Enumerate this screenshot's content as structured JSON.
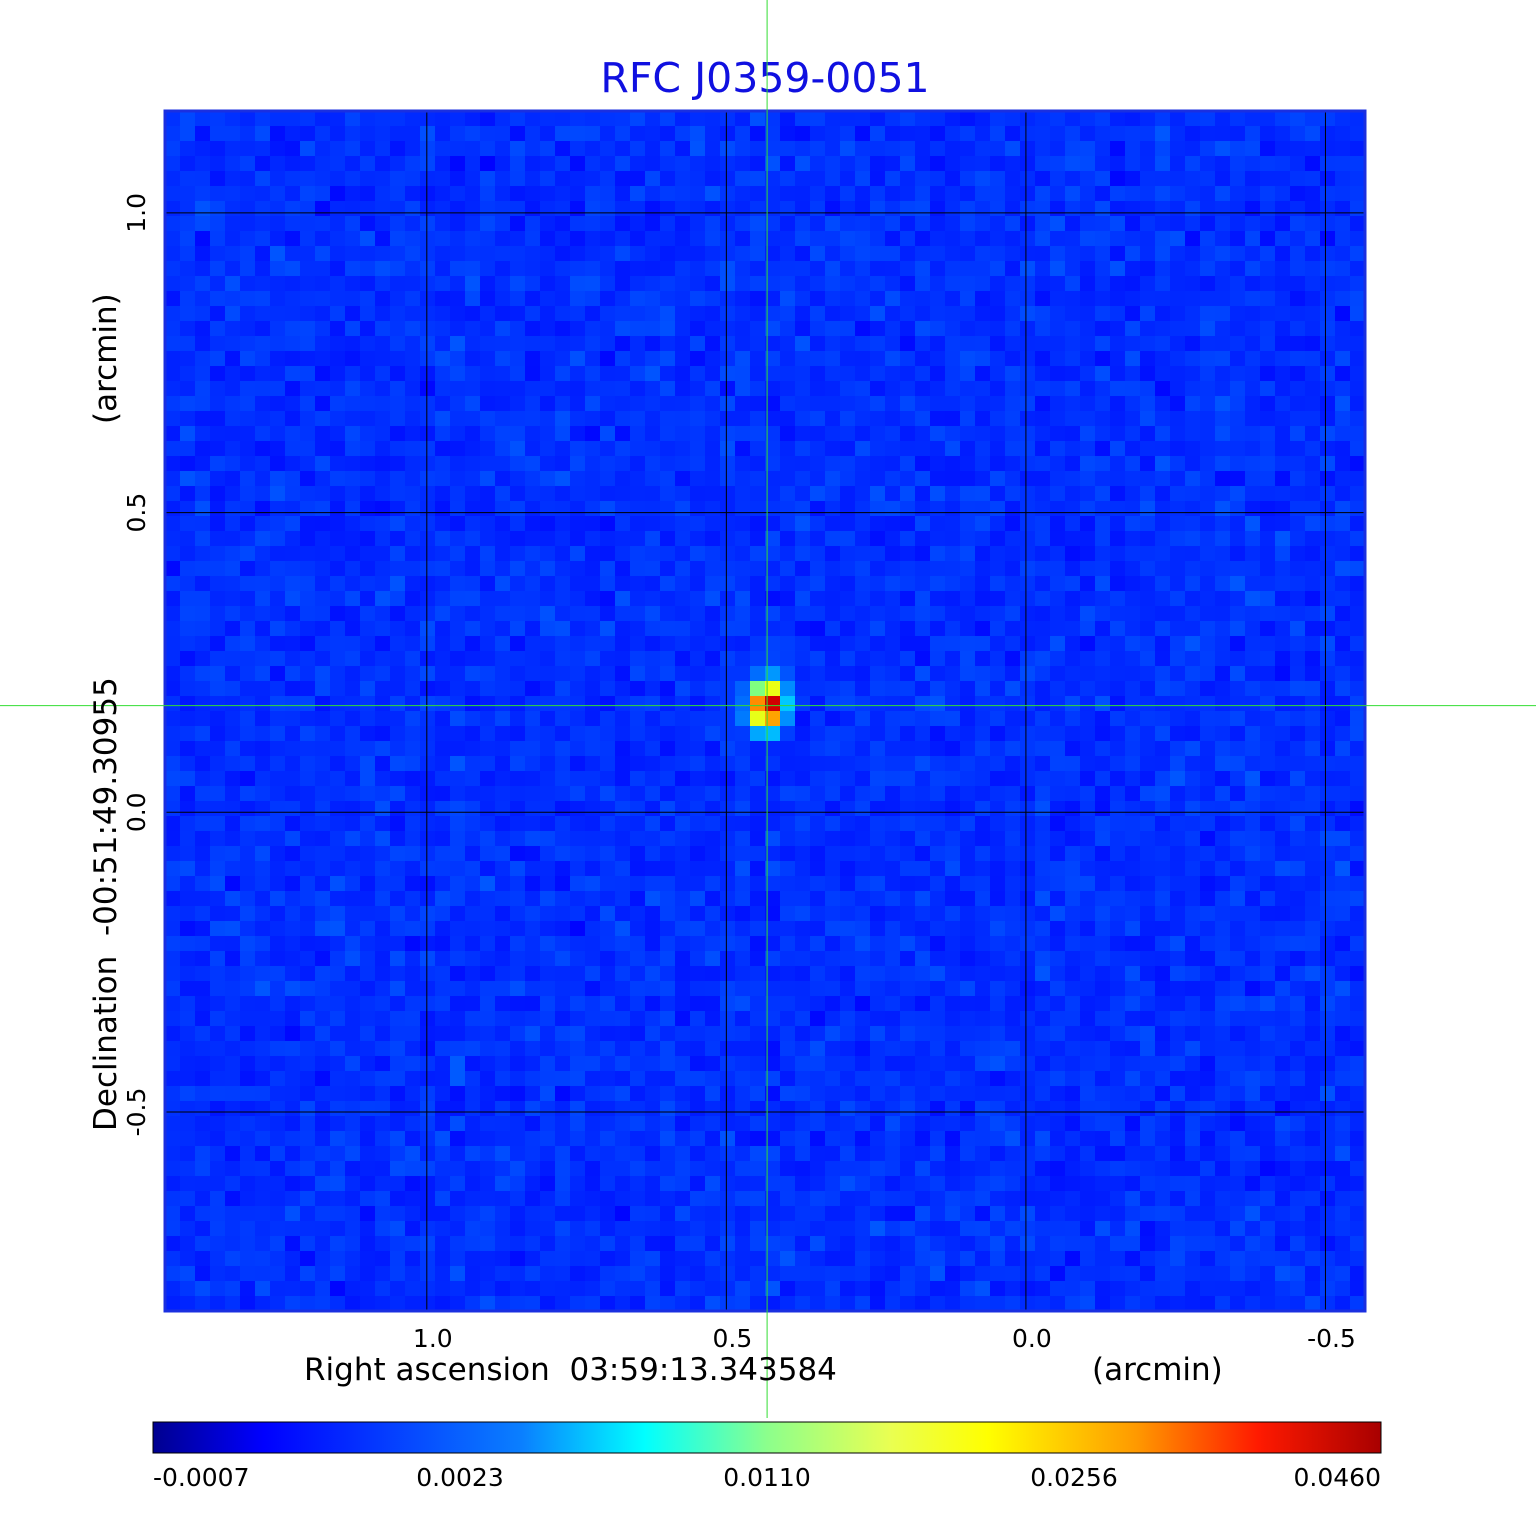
{
  "chart_data": {
    "type": "heatmap",
    "title": "RFC J0359-0051",
    "xlabel": "Right ascension  03:59:13.343584",
    "xunit": "(arcmin)",
    "ylabel": "Declination  -00:51:49.30955",
    "yunit": "(arcmin)",
    "xlim": [
      1.437,
      -0.566
    ],
    "ylim": [
      -0.832,
      1.17
    ],
    "x_ticks": [
      {
        "value": 1.0,
        "label": "1.0"
      },
      {
        "value": 0.5,
        "label": "0.5"
      },
      {
        "value": 0.0,
        "label": "0.0"
      },
      {
        "value": -0.5,
        "label": "-0.5"
      }
    ],
    "y_ticks": [
      {
        "value": 1.0,
        "label": "1.0"
      },
      {
        "value": 0.5,
        "label": "0.5"
      },
      {
        "value": 0.0,
        "label": "0.0"
      },
      {
        "value": -0.5,
        "label": "-0.5"
      }
    ],
    "grid": true,
    "crosshair": {
      "x": 0.432,
      "y": 0.178
    },
    "source_peak": {
      "x": 0.432,
      "y": 0.178,
      "value": 0.046
    },
    "colorbar": {
      "position": "bottom",
      "colormap": "jet",
      "tick_labels": [
        "-0.0007",
        "0.0023",
        "0.0110",
        "0.0256",
        "0.0460"
      ]
    },
    "colors": {
      "title": "#1010e0",
      "background_level": "#1f4ff0",
      "grid": "#000000",
      "crosshair": "#33dd33",
      "frame": "#1a2fe0"
    }
  }
}
